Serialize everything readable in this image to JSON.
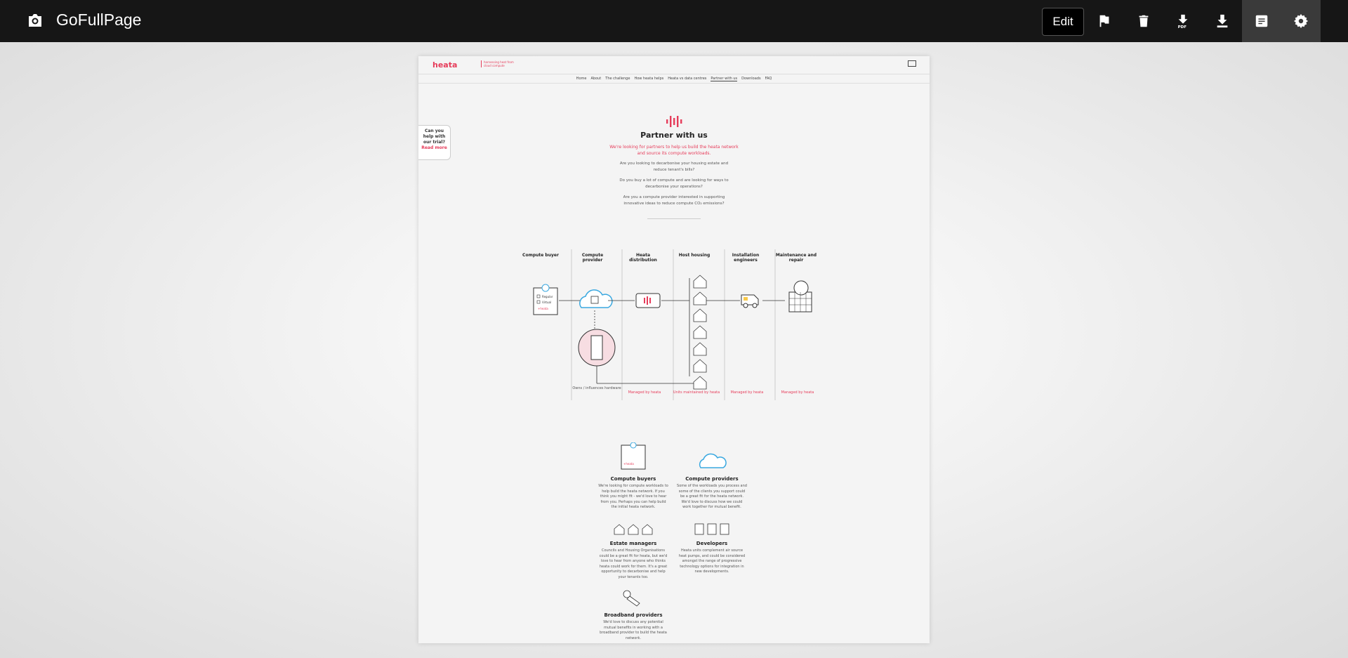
{
  "app": {
    "title": "GoFullPage",
    "toolbar": {
      "edit_label": "Edit",
      "icons": [
        "camera-icon",
        "flag-icon",
        "trash-icon",
        "pdf-download-icon",
        "download-icon",
        "document-icon",
        "gear-icon"
      ]
    }
  },
  "page": {
    "logo": "heata",
    "tagline": "harnessing heat from cloud compute",
    "nav": [
      "Home",
      "About",
      "The challenge",
      "How heata helps",
      "Heata vs data centres",
      "Partner with us",
      "Downloads",
      "FAQ"
    ],
    "nav_active": "Partner with us",
    "trial": {
      "text": "Can you help with our trial?",
      "link": "Read more"
    },
    "hero": {
      "title": "Partner with us",
      "lead": "We're looking for partners to help us build the heata network and source its compute workloads.",
      "paragraphs": [
        "Are you looking to decarbonise your housing estate and reduce tenant's bills?",
        "Do you buy a lot of compute and are looking for ways to decarbonise your operations?",
        "Are you a compute provider interested in supporting innovative ideas to reduce compute CO₂ emissions?"
      ]
    },
    "diagram": {
      "columns": [
        "Compute buyer",
        "Compute provider",
        "Heata distribution",
        "Host housing",
        "Installation engineers",
        "Maintenance and repair"
      ],
      "footers": [
        "Owns / influences hardware",
        "Managed by heata",
        "Units maintained by heata",
        "Managed by heata",
        "Managed by heata"
      ],
      "clipboard_items": [
        "Regular",
        "Virtual",
        "+heata"
      ]
    },
    "cards": [
      {
        "title": "Compute buyers",
        "text": "We're looking for compute workloads to help build the heata network. If you think you might fit - we'd love to hear from you. Perhaps you can help build the initial heata network."
      },
      {
        "title": "Compute providers",
        "text": "Some of the workloads you process and some of the clients you support could be a great fit for the heata network. We'd love to discuss how we could work together for mutual benefit."
      },
      {
        "title": "Estate managers",
        "text": "Councils and Housing Organisations could be a great fit for heata, but we'd love to hear from anyone who thinks heata could work for them. It's a great opportunity to decarbonise and help your tenants too."
      },
      {
        "title": "Developers",
        "text": "Heata units complement air source heat pumps, and could be considered amongst the range of progressive technology options for integration in new developments."
      },
      {
        "title": "Broadband providers",
        "text": "We'd love to discuss any potential mutual benefits in working with a broadband provider to build the heata network."
      }
    ]
  },
  "colors": {
    "topbar": "#161616",
    "accent": "#e63c5a",
    "cloud": "#3aa8e0"
  }
}
